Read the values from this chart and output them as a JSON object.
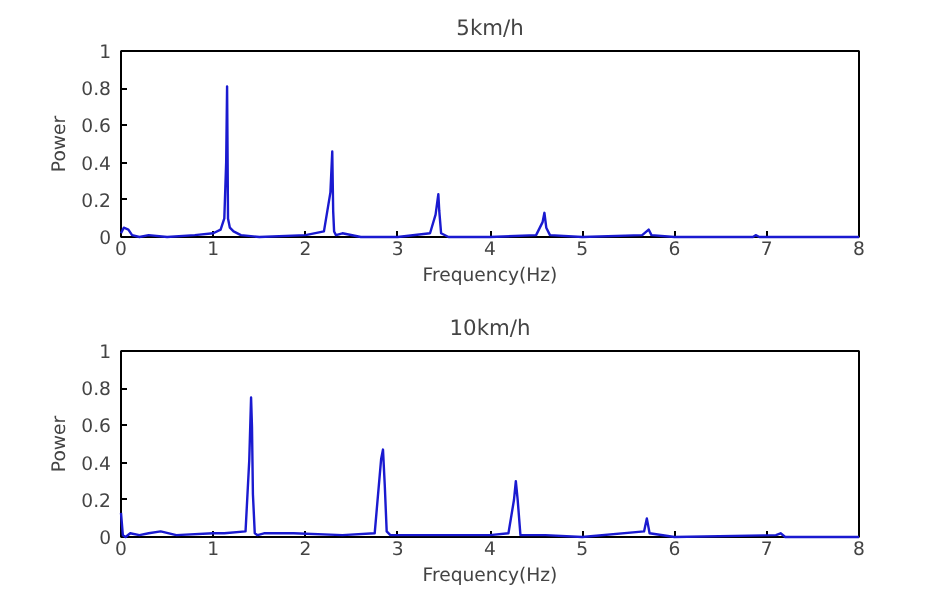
{
  "chart_data": [
    {
      "type": "line",
      "title": "5km/h",
      "xlabel": "Frequency(Hz)",
      "ylabel": "Power",
      "xlim": [
        0,
        8
      ],
      "ylim": [
        0,
        1
      ],
      "xticks": [
        0,
        1,
        2,
        3,
        4,
        5,
        6,
        7,
        8
      ],
      "yticks": [
        0,
        0.2,
        0.4,
        0.6,
        0.8,
        1
      ],
      "grid": false,
      "x": [
        0,
        0.03,
        0.08,
        0.12,
        0.2,
        0.3,
        0.5,
        0.8,
        1.0,
        1.08,
        1.12,
        1.14,
        1.15,
        1.16,
        1.18,
        1.22,
        1.3,
        1.5,
        2.0,
        2.2,
        2.27,
        2.29,
        2.3,
        2.31,
        2.33,
        2.4,
        2.6,
        3.0,
        3.35,
        3.41,
        3.44,
        3.45,
        3.47,
        3.55,
        4.0,
        4.5,
        4.57,
        4.59,
        4.61,
        4.65,
        5.0,
        5.65,
        5.72,
        5.75,
        6.0,
        6.85,
        6.88,
        6.92,
        7.5,
        8.0
      ],
      "series": [
        {
          "color": "#1a1ad0",
          "values": [
            0.02,
            0.05,
            0.04,
            0.01,
            0,
            0.01,
            0,
            0.01,
            0.02,
            0.04,
            0.1,
            0.4,
            0.81,
            0.1,
            0.05,
            0.03,
            0.01,
            0,
            0.01,
            0.03,
            0.24,
            0.46,
            0.14,
            0.03,
            0.01,
            0.02,
            0,
            0,
            0.02,
            0.12,
            0.23,
            0.14,
            0.02,
            0,
            0,
            0.01,
            0.08,
            0.13,
            0.05,
            0.01,
            0,
            0.01,
            0.04,
            0.01,
            0,
            0,
            0.01,
            0,
            0,
            0
          ]
        }
      ]
    },
    {
      "type": "line",
      "title": "10km/h",
      "xlabel": "Frequency(Hz)",
      "ylabel": "Power",
      "xlim": [
        0,
        8
      ],
      "ylim": [
        0,
        1
      ],
      "xticks": [
        0,
        1,
        2,
        3,
        4,
        5,
        6,
        7,
        8
      ],
      "yticks": [
        0,
        0.2,
        0.4,
        0.6,
        0.8,
        1
      ],
      "grid": false,
      "x": [
        0,
        0.02,
        0.05,
        0.1,
        0.2,
        0.3,
        0.43,
        0.6,
        1.0,
        1.12,
        1.35,
        1.39,
        1.41,
        1.42,
        1.43,
        1.45,
        1.48,
        1.55,
        1.75,
        1.87,
        2.4,
        2.75,
        2.82,
        2.84,
        2.86,
        2.88,
        2.92,
        3.0,
        3.2,
        3.3,
        4.0,
        4.2,
        4.26,
        4.28,
        4.3,
        4.33,
        4.6,
        5.0,
        5.67,
        5.7,
        5.73,
        6.0,
        7.1,
        7.15,
        7.2,
        8.0
      ],
      "series": [
        {
          "color": "#1a1ad0",
          "values": [
            0.13,
            0.01,
            0,
            0.02,
            0.01,
            0.02,
            0.03,
            0.01,
            0.02,
            0.02,
            0.03,
            0.41,
            0.75,
            0.59,
            0.23,
            0.02,
            0.01,
            0.02,
            0.02,
            0.02,
            0.01,
            0.02,
            0.42,
            0.47,
            0.27,
            0.03,
            0.01,
            0.01,
            0.01,
            0.01,
            0.01,
            0.02,
            0.2,
            0.3,
            0.2,
            0.01,
            0.01,
            0,
            0.03,
            0.1,
            0.02,
            0,
            0.01,
            0.02,
            0,
            0
          ]
        }
      ]
    }
  ]
}
